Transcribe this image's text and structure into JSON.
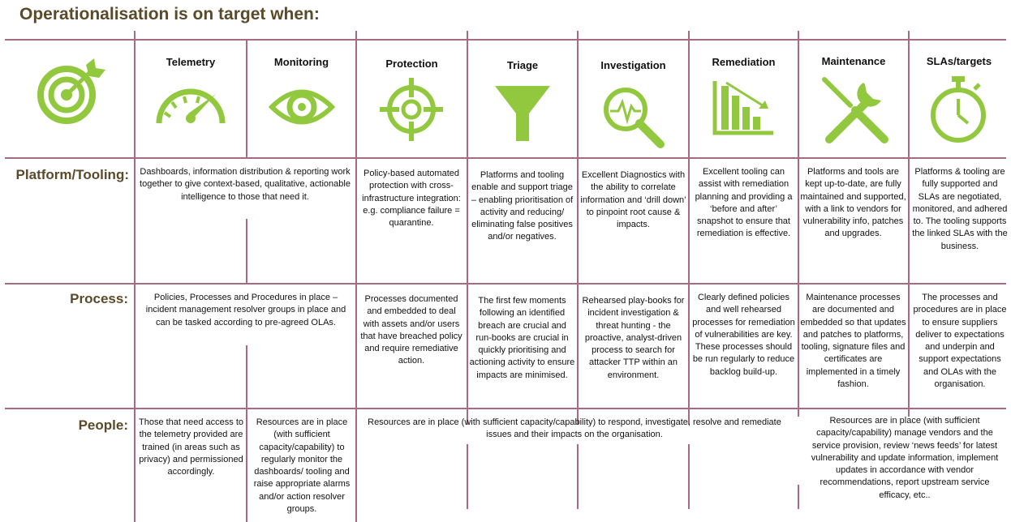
{
  "title": "Operationalisation is on target when:",
  "accent_color": "#92c83e",
  "line_color": "#a86a80",
  "label_color": "#5a4a2a",
  "columns": [
    {
      "label": "",
      "icon": "target-icon"
    },
    {
      "label": "Telemetry",
      "icon": "speedometer-icon"
    },
    {
      "label": "Monitoring",
      "icon": "eye-icon"
    },
    {
      "label": "Protection",
      "icon": "crosshair-icon"
    },
    {
      "label": "Triage",
      "icon": "funnel-icon"
    },
    {
      "label": "Investigation",
      "icon": "magnifier-pulse-icon"
    },
    {
      "label": "Remediation",
      "icon": "declining-chart-icon"
    },
    {
      "label": "Maintenance",
      "icon": "wrench-screwdriver-icon"
    },
    {
      "label": "SLAs/targets",
      "icon": "stopwatch-icon"
    }
  ],
  "rows": {
    "platform": {
      "label": "Platform/Tooling:",
      "telemetry_monitoring": "Dashboards, information distribution & reporting work together to give context-based, qualitative, actionable intelligence to those that need it.",
      "protection": "Policy-based automated protection with cross-infrastructure integration: e.g. compliance failure = quarantine.",
      "triage": "Platforms and tooling enable and support triage – enabling prioritisation of activity and reducing/ eliminating false positives and/or negatives.",
      "investigation": "Excellent Diagnostics with the ability to correlate information and ‘drill down’ to pinpoint root cause & impacts.",
      "remediation": "Excellent tooling can assist with remediation planning and providing a ‘before and after’ snapshot to ensure that remediation is effective.",
      "maintenance": "Platforms and tools are kept up-to-date, are fully maintained and supported, with a link to vendors for vulnerability info, patches and upgrades.",
      "slas": "Platforms & tooling are fully supported and SLAs are negotiated, monitored, and adhered to. The tooling supports the linked SLAs with the business."
    },
    "process": {
      "label": "Process:",
      "telemetry_monitoring": "Policies, Processes and Procedures in place – incident management resolver groups in place and can be tasked according to pre-agreed OLAs.",
      "protection": "Processes documented and embedded to deal with assets and/or users that have breached policy and require remediative action.",
      "triage": "The first few moments following an identified breach are crucial and run-books are crucial in quickly prioritising and actioning activity to ensure impacts are minimised.",
      "investigation": "Rehearsed play-books for incident investigation & threat hunting - the proactive, analyst-driven process to search for attacker TTP within an environment.",
      "remediation": "Clearly defined policies and well rehearsed processes for remediation of vulnerabilities are key. These processes should be run regularly to reduce backlog build-up.",
      "maintenance": "Maintenance processes are documented and embedded so that updates and patches to platforms, tooling, signature files and certificates are implemented in a timely fashion.",
      "slas": "The processes and procedures are in place to ensure suppliers deliver to expectations and underpin and support expectations and OLAs with the organisation."
    },
    "people": {
      "label": "People:",
      "telemetry": "Those that need access to the telemetry provided are trained (in areas such as privacy) and permissioned accordingly.",
      "monitoring": "Resources are in place (with sufficient capacity/capability) to regularly monitor the dashboards/ tooling and raise appropriate alarms and/or action resolver groups.",
      "protection_to_remediation": "Resources are in place (with sufficient capacity/capability) to respond, investigate, resolve and remediate issues and their impacts on the organisation.",
      "maintenance_slas": "Resources are in place (with sufficient capacity/capability) manage vendors and the service provision, review ‘news feeds’ for latest vulnerability and update information, implement updates in accordance with vendor recommendations, report upstream service efficacy, etc.."
    }
  }
}
